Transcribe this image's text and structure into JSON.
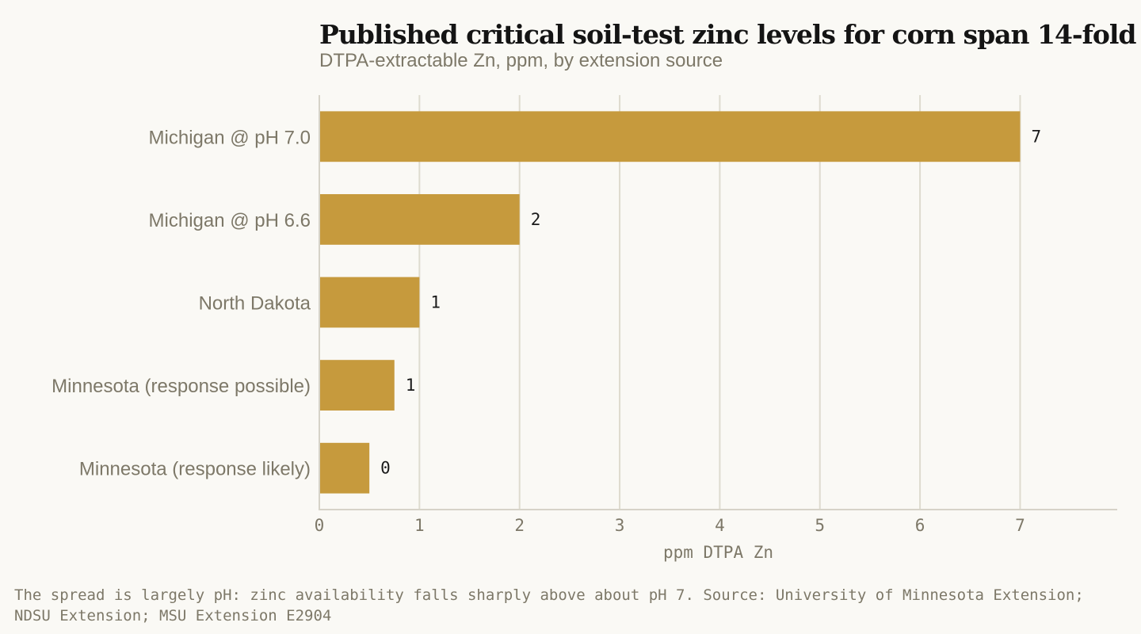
{
  "chart_data": {
    "type": "bar",
    "orientation": "horizontal",
    "title": "Published critical soil-test zinc levels for corn span 14-fold",
    "subtitle": "DTPA-extractable Zn, ppm, by extension source",
    "xlabel": "ppm DTPA Zn",
    "ylabel": "",
    "xlim": [
      0,
      7.97
    ],
    "x_ticks": [
      0,
      1,
      2,
      3,
      4,
      5,
      6,
      7
    ],
    "grid": "vertical",
    "legend": "none",
    "bar_color": "#c69a3d",
    "categories": [
      "Michigan @ pH 7.0",
      "Michigan @ pH 6.6",
      "North Dakota",
      "Minnesota (response possible)",
      "Minnesota (response likely)"
    ],
    "values": [
      7.0,
      2.0,
      1.0,
      0.75,
      0.5
    ],
    "value_labels": [
      "7",
      "2",
      "1",
      "1",
      "0"
    ]
  },
  "footer": "The spread is largely pH: zinc availability falls sharply above about pH 7.   Source: University of Minnesota Extension; NDSU Extension; MSU Extension E2904"
}
